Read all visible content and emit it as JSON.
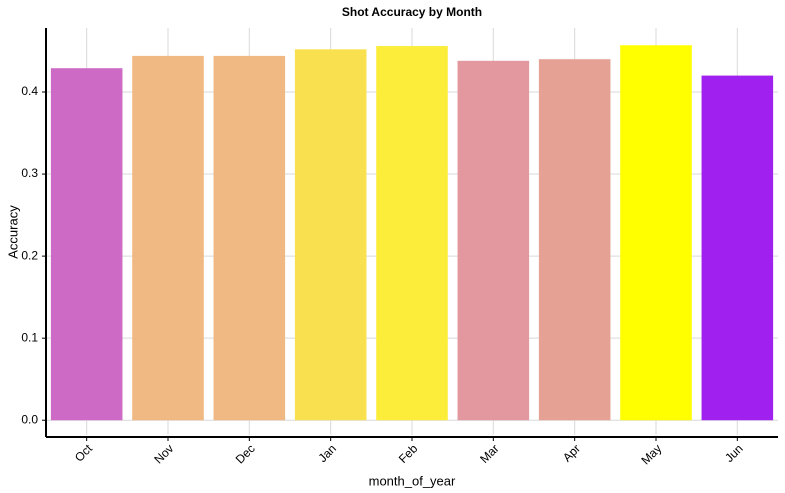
{
  "chart_data": {
    "type": "bar",
    "title": "Shot Accuracy by Month",
    "x_label": "month_of_year",
    "y_label": "Accuracy",
    "categories": [
      "Oct",
      "Nov",
      "Dec",
      "Jan",
      "Feb",
      "Mar",
      "Apr",
      "May",
      "Jun"
    ],
    "values": [
      0.429,
      0.444,
      0.444,
      0.452,
      0.456,
      0.438,
      0.44,
      0.457,
      0.42
    ],
    "colors": [
      "#cc6ac6",
      "#f0b882",
      "#f0b882",
      "#f9e04e",
      "#fbed3a",
      "#e3979e",
      "#e6a195",
      "#ffff00",
      "#a020f0"
    ],
    "ylim": [
      -0.018,
      0.478
    ],
    "yticks": [
      {
        "value": 0,
        "label": "0.0"
      },
      0.1,
      0.2,
      0.3,
      0.4
    ],
    "grid": true
  }
}
